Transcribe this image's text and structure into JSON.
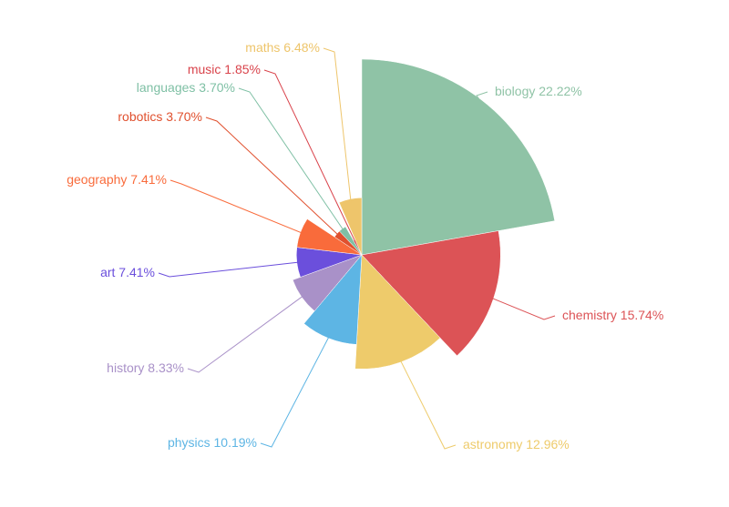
{
  "chart_data": {
    "type": "rose",
    "categories": [
      "biology",
      "chemistry",
      "astronomy",
      "physics",
      "history",
      "art",
      "geography",
      "robotics",
      "languages",
      "music",
      "maths"
    ],
    "values": [
      22.22,
      15.74,
      12.96,
      10.19,
      8.33,
      7.41,
      7.41,
      3.7,
      3.7,
      1.85,
      6.48
    ],
    "value_labels": [
      "22.22%",
      "15.74%",
      "12.96%",
      "10.19%",
      "8.33%",
      "7.41%",
      "7.41%",
      "3.70%",
      "3.70%",
      "1.85%",
      "6.48%"
    ],
    "colors": [
      "#8fc3a6",
      "#dc5356",
      "#eecb6b",
      "#5db5e4",
      "#a991c8",
      "#6b4fdc",
      "#f96b3b",
      "#e0502e",
      "#7fc0a5",
      "#d9434b",
      "#eec56b"
    ]
  }
}
